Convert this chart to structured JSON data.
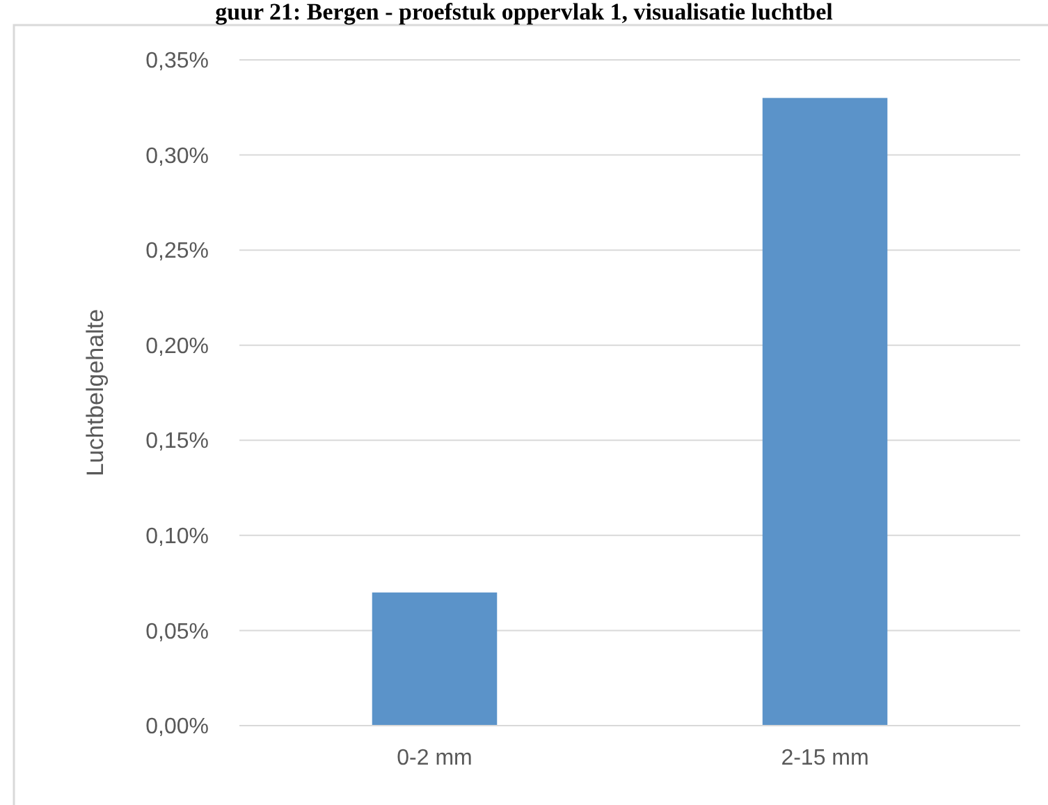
{
  "chart_data": {
    "type": "bar",
    "title": "guur 21: Bergen - proefstuk oppervlak 1, visualisatie luchtbel",
    "ylabel": "Luchtbelgehalte",
    "categories": [
      "0-2 mm",
      "2-15 mm"
    ],
    "values": [
      0.07,
      0.33
    ],
    "color": "#5b93c9",
    "ylim": [
      0,
      0.35
    ],
    "yticks": [
      {
        "value": 0,
        "label": "0,00%"
      },
      {
        "value": 0.05,
        "label": "0,05%"
      },
      {
        "value": 0.1,
        "label": "0,10%"
      },
      {
        "value": 0.15,
        "label": "0,15%"
      },
      {
        "value": 0.2,
        "label": "0,20%"
      },
      {
        "value": 0.25,
        "label": "0,25%"
      },
      {
        "value": 0.3,
        "label": "0,30%"
      },
      {
        "value": 0.35,
        "label": "0,35%"
      }
    ],
    "grid": "y"
  }
}
